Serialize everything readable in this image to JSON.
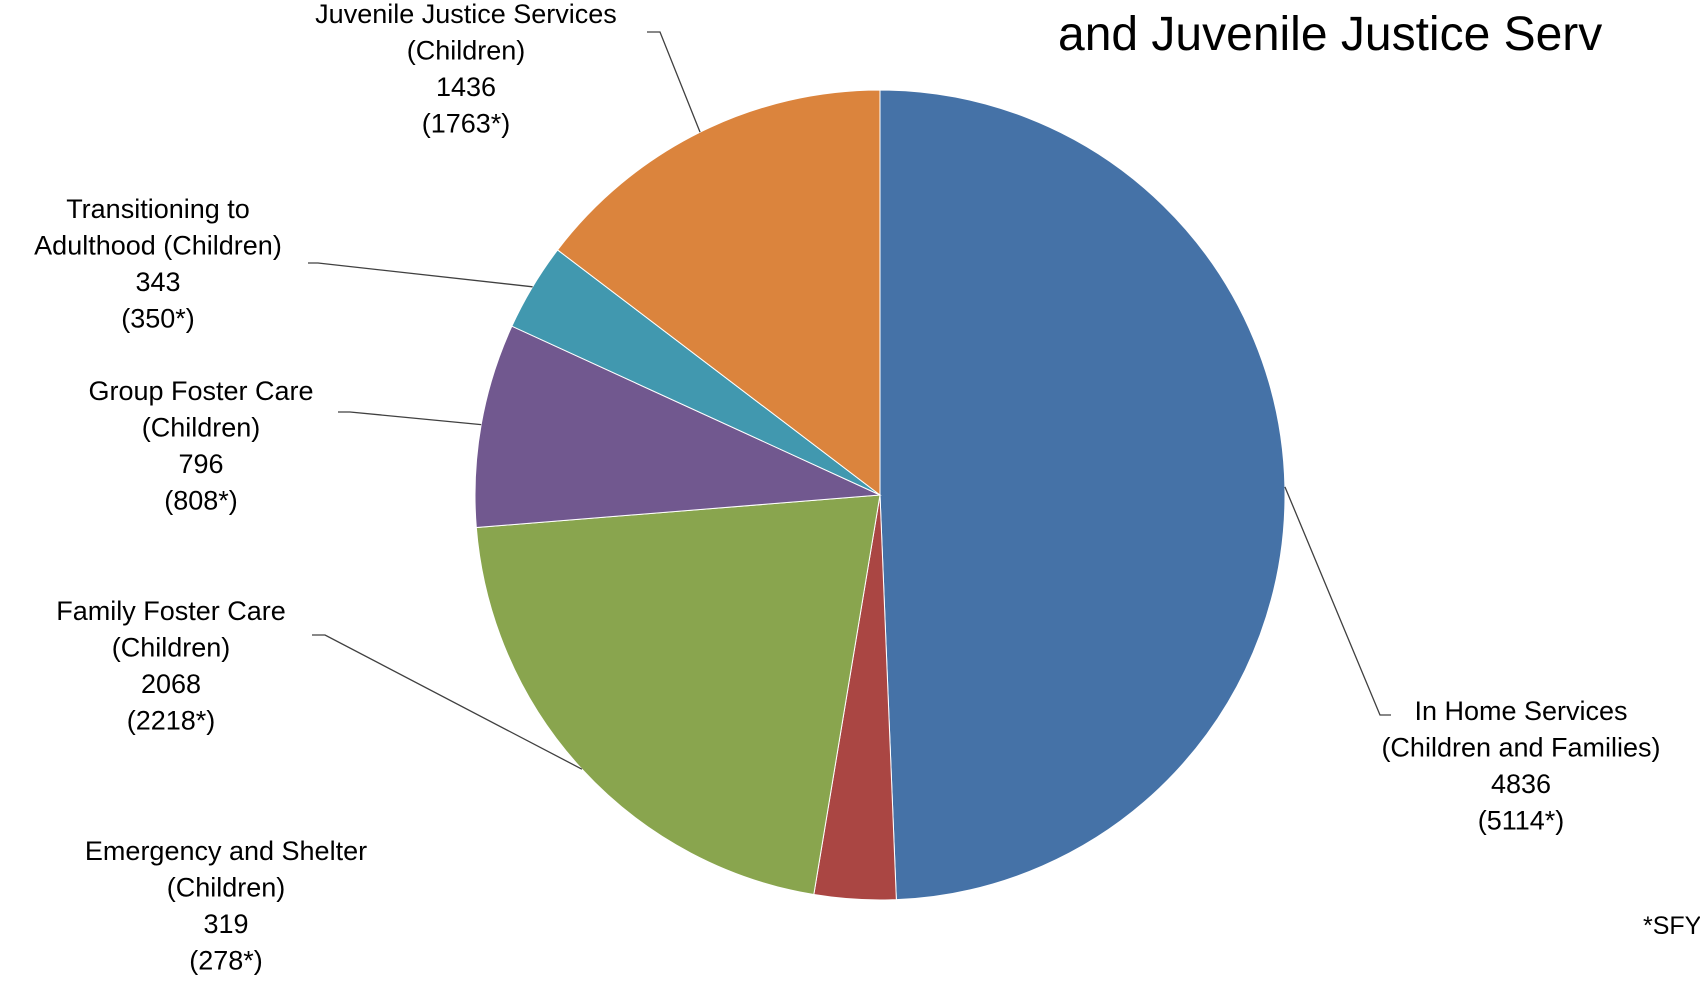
{
  "chart_data": {
    "type": "pie",
    "title": "and Juvenile Justice Serv",
    "footnote": "*SFY",
    "start_angle_deg": 0,
    "direction": "clockwise",
    "slices": [
      {
        "name": "In Home Services",
        "sub": "(Children and Families)",
        "value": 4836,
        "prior": "(5114*)",
        "color": "#4572A7"
      },
      {
        "name": "Emergency and Shelter",
        "sub": "(Children)",
        "value": 319,
        "prior": "(278*)",
        "color": "#AA4643"
      },
      {
        "name": "Family Foster Care",
        "sub": "(Children)",
        "value": 2068,
        "prior": "(2218*)",
        "color": "#89A54E"
      },
      {
        "name": "Group Foster Care",
        "sub": "(Children)",
        "value": 796,
        "prior": "(808*)",
        "color": "#71588F"
      },
      {
        "name": "Transitioning to",
        "sub": "Adulthood (Children)",
        "value": 343,
        "prior": "(350*)",
        "color": "#4198AF"
      },
      {
        "name": "Juvenile Justice Services",
        "sub": "(Children)",
        "value": 1436,
        "prior": "(1763*)",
        "color": "#DB843D"
      }
    ]
  }
}
